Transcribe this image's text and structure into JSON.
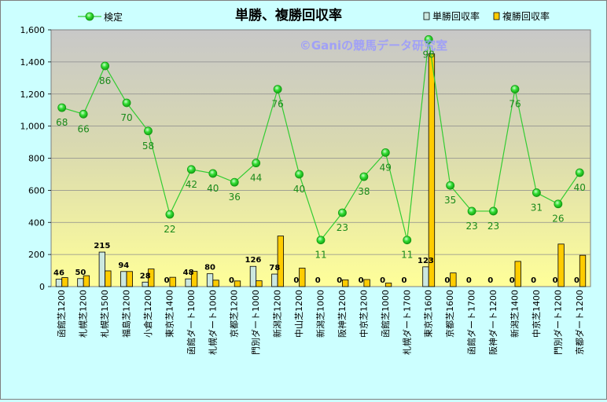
{
  "chart_data": {
    "type": "bar",
    "title": "単勝、複勝回収率",
    "watermark": "©Ganiの競馬データ研究室",
    "legend_position": "top",
    "ylim": [
      0,
      1600
    ],
    "yticks": [
      "0",
      "200",
      "400",
      "600",
      "800",
      "1,000",
      "1,200",
      "1,400",
      "1,600"
    ],
    "grid": true,
    "categories": [
      "函館芝1200",
      "札幌芝1200",
      "札幌芝1500",
      "福島芝1200",
      "小倉芝1200",
      "東京芝1400",
      "函館ダート1000",
      "札幌ダート1000",
      "京都芝1200",
      "門別ダート1000",
      "新潟芝1200",
      "中山芝1200",
      "新潟芝1000",
      "阪神芝1200",
      "中京芝1200",
      "函館芝1000",
      "札幌ダート1700",
      "東京芝1600",
      "京都芝1600",
      "函館ダート1700",
      "阪神ダート1200",
      "新潟芝1400",
      "中京芝1400",
      "門別ダート1200",
      "京都ダート1200"
    ],
    "series": [
      {
        "name": "単勝回収率",
        "type": "bar",
        "color": "#cce8e0",
        "values": [
          46,
          50,
          215,
          94,
          28,
          0,
          48,
          80,
          0,
          126,
          78,
          0,
          0,
          0,
          0,
          0,
          0,
          123,
          0,
          0,
          0,
          0,
          0,
          0,
          0
        ],
        "labels": [
          "46",
          "50",
          "215",
          "94",
          "28",
          "0",
          "48",
          "80",
          "0",
          "126",
          "78",
          "0",
          "0",
          "0",
          "0",
          "0",
          "0",
          "123",
          "0",
          "0",
          "0",
          "0",
          "0",
          "0",
          "0"
        ]
      },
      {
        "name": "複勝回収率",
        "type": "bar",
        "color": "#ffcc00",
        "values": [
          56,
          68,
          98,
          94,
          110,
          58,
          95,
          40,
          35,
          36,
          315,
          115,
          0,
          42,
          44,
          22,
          0,
          1450,
          85,
          0,
          0,
          157,
          0,
          265,
          195
        ]
      },
      {
        "name": "検定",
        "type": "line",
        "color": "#33cc33",
        "values": [
          1115,
          1075,
          1375,
          1145,
          970,
          450,
          730,
          705,
          650,
          770,
          1230,
          700,
          290,
          460,
          685,
          835,
          290,
          1540,
          630,
          470,
          470,
          1230,
          585,
          515,
          710
        ],
        "labels": [
          "68",
          "66",
          "86",
          "70",
          "58",
          "22",
          "42",
          "40",
          "36",
          "44",
          "76",
          "40",
          "11",
          "23",
          "38",
          "49",
          "11",
          "98",
          "35",
          "23",
          "23",
          "76",
          "31",
          "26",
          "40"
        ]
      }
    ]
  }
}
